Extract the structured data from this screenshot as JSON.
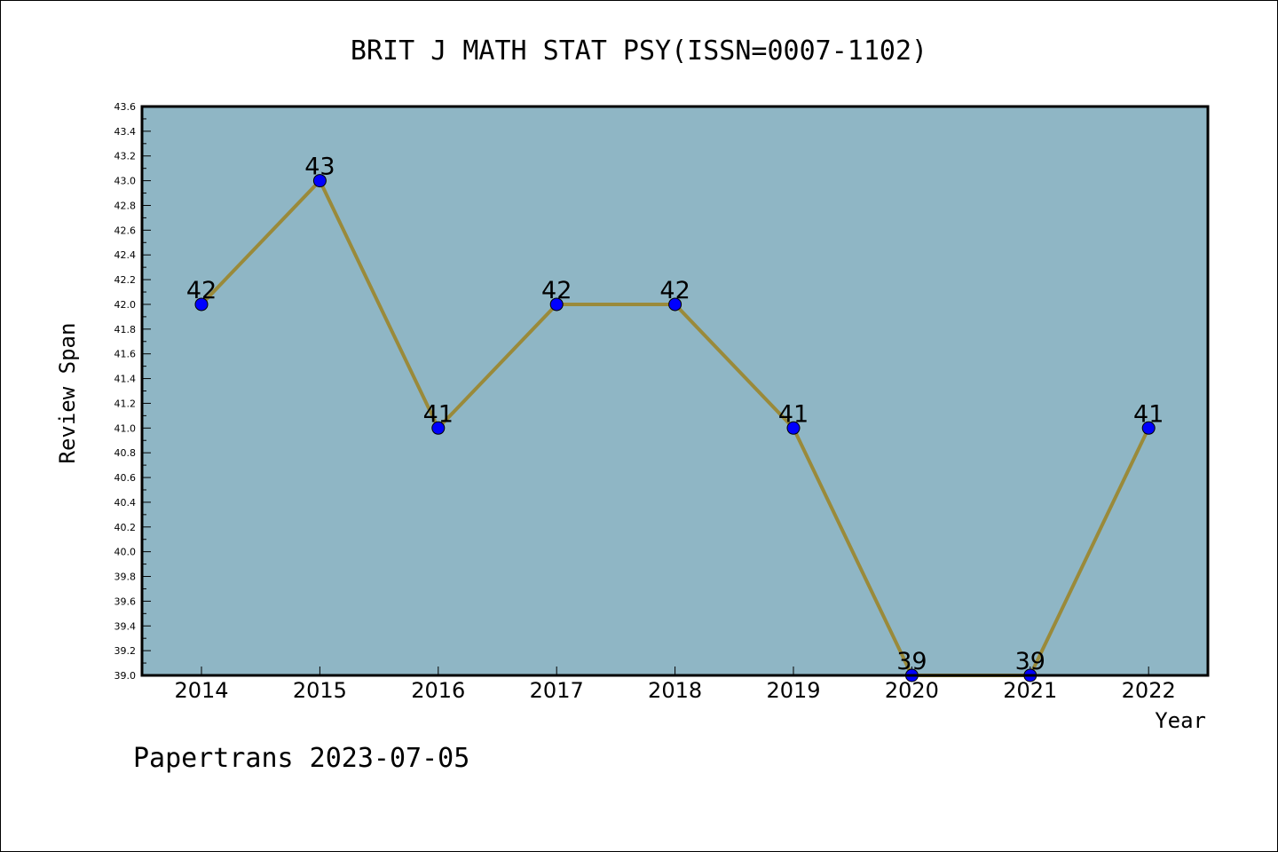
{
  "chart_data": {
    "type": "line",
    "title": "BRIT J MATH STAT PSY(ISSN=0007-1102)",
    "xlabel": "Year",
    "ylabel": "Review Span",
    "categories": [
      "2014",
      "2015",
      "2016",
      "2017",
      "2018",
      "2019",
      "2020",
      "2021",
      "2022"
    ],
    "values": [
      42,
      43,
      41,
      42,
      42,
      41,
      39,
      39,
      41
    ],
    "data_labels": [
      "42",
      "43",
      "41",
      "42",
      "42",
      "41",
      "39",
      "39",
      "41"
    ],
    "ylim": [
      39.0,
      43.6
    ],
    "yticks": [
      "39.0",
      "39.2",
      "39.4",
      "39.6",
      "39.8",
      "40.0",
      "40.2",
      "40.4",
      "40.6",
      "40.8",
      "41.0",
      "41.2",
      "41.4",
      "41.6",
      "41.8",
      "42.0",
      "42.2",
      "42.4",
      "42.6",
      "42.8",
      "43.0",
      "43.2",
      "43.4",
      "43.6"
    ],
    "grid": false,
    "colors": {
      "plot_background": "#8fb6c5",
      "line": "#9a8a3a",
      "marker": "#0000ff"
    }
  },
  "footer": {
    "text": "Papertrans 2023-07-05"
  }
}
